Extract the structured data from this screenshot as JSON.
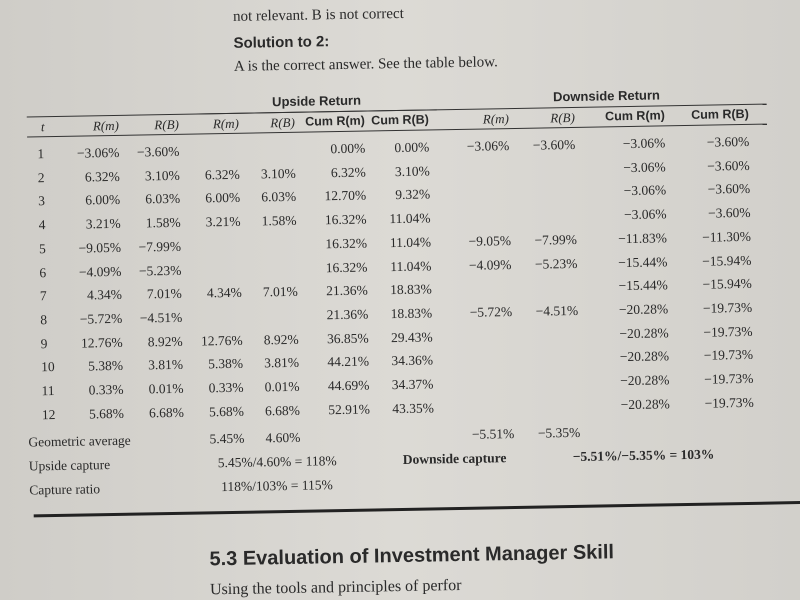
{
  "top_text": "not relevant. B is not correct",
  "heading": "Solution to 2:",
  "intro": "A is the correct answer. See the table below.",
  "table": {
    "groups": [
      "Upside Return",
      "Downside Return"
    ],
    "columns": [
      "t",
      "R(m)",
      "R(B)",
      "R(m)",
      "R(B)",
      "Cum R(m)",
      "Cum R(B)",
      "R(m)",
      "R(B)",
      "Cum R(m)",
      "Cum R(B)"
    ],
    "rows": [
      [
        "1",
        "−3.06%",
        "−3.60%",
        null,
        null,
        "0.00%",
        "0.00%",
        "−3.06%",
        "−3.60%",
        "−3.06%",
        "−3.60%"
      ],
      [
        "2",
        "6.32%",
        "3.10%",
        "6.32%",
        "3.10%",
        "6.32%",
        "3.10%",
        null,
        null,
        "−3.06%",
        "−3.60%"
      ],
      [
        "3",
        "6.00%",
        "6.03%",
        "6.00%",
        "6.03%",
        "12.70%",
        "9.32%",
        null,
        null,
        "−3.06%",
        "−3.60%"
      ],
      [
        "4",
        "3.21%",
        "1.58%",
        "3.21%",
        "1.58%",
        "16.32%",
        "11.04%",
        null,
        null,
        "−3.06%",
        "−3.60%"
      ],
      [
        "5",
        "−9.05%",
        "−7.99%",
        null,
        null,
        "16.32%",
        "11.04%",
        "−9.05%",
        "−7.99%",
        "−11.83%",
        "−11.30%"
      ],
      [
        "6",
        "−4.09%",
        "−5.23%",
        null,
        null,
        "16.32%",
        "11.04%",
        "−4.09%",
        "−5.23%",
        "−15.44%",
        "−15.94%"
      ],
      [
        "7",
        "4.34%",
        "7.01%",
        "4.34%",
        "7.01%",
        "21.36%",
        "18.83%",
        null,
        null,
        "−15.44%",
        "−15.94%"
      ],
      [
        "8",
        "−5.72%",
        "−4.51%",
        null,
        null,
        "21.36%",
        "18.83%",
        "−5.72%",
        "−4.51%",
        "−20.28%",
        "−19.73%"
      ],
      [
        "9",
        "12.76%",
        "8.92%",
        "12.76%",
        "8.92%",
        "36.85%",
        "29.43%",
        null,
        null,
        "−20.28%",
        "−19.73%"
      ],
      [
        "10",
        "5.38%",
        "3.81%",
        "5.38%",
        "3.81%",
        "44.21%",
        "34.36%",
        null,
        null,
        "−20.28%",
        "−19.73%"
      ],
      [
        "11",
        "0.33%",
        "0.01%",
        "0.33%",
        "0.01%",
        "44.69%",
        "34.37%",
        null,
        null,
        "−20.28%",
        "−19.73%"
      ],
      [
        "12",
        "5.68%",
        "6.68%",
        "5.68%",
        "6.68%",
        "52.91%",
        "43.35%",
        null,
        null,
        "−20.28%",
        "−19.73%"
      ]
    ],
    "geometric_average": {
      "label": "Geometric average",
      "upside": [
        "5.45%",
        "4.60%"
      ],
      "downside": [
        "−5.51%",
        "−5.35%"
      ]
    },
    "upside_capture": {
      "label": "Upside capture",
      "value": "5.45%/4.60% = 118%"
    },
    "downside_capture": {
      "label": "Downside capture",
      "value": "−5.51%/−5.35% = 103%"
    },
    "capture_ratio": {
      "label": "Capture ratio",
      "value": "118%/103% = 115%"
    }
  },
  "section": {
    "title": "5.3 Evaluation of Investment Manager Skill",
    "text": "Using the tools and principles of perfor"
  }
}
